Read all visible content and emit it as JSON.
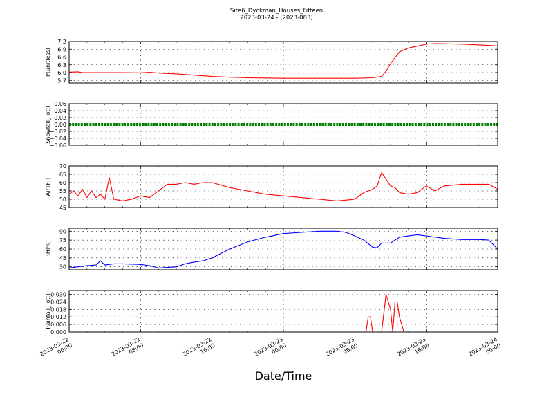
{
  "header": {
    "title": "Site6_Dyckman_Houses_Fifteen",
    "subtitle": "2023-03-24 - (2023-083)"
  },
  "x_axis": {
    "label": "Date/Time",
    "tick_labels": [
      [
        "2023-03-22",
        "00:00"
      ],
      [
        "2023-03-22",
        "08:00"
      ],
      [
        "2023-03-22",
        "16:00"
      ],
      [
        "2023-03-23",
        "00:00"
      ],
      [
        "2023-03-23",
        "08:00"
      ],
      [
        "2023-03-23",
        "16:00"
      ],
      [
        "2023-03-24",
        "00:00"
      ]
    ]
  },
  "chart_data": [
    {
      "type": "line",
      "ylabel": "P(unitless)",
      "ylim": [
        5.6,
        7.2
      ],
      "yticks": [
        5.7,
        6.0,
        6.3,
        6.6,
        6.9,
        7.2
      ],
      "ytick_labels": [
        "5.7",
        "6.0",
        "6.3",
        "6.6",
        "6.9",
        "7.2"
      ],
      "xlim": [
        "2023-03-22 00:00",
        "2023-03-24 00:00"
      ],
      "grid": true,
      "series": [
        {
          "color": "#ff0000",
          "x": [
            "2023-03-22 00:00",
            "2023-03-22 01:00",
            "2023-03-22 01:30",
            "2023-03-22 03:00",
            "2023-03-22 06:00",
            "2023-03-22 08:00",
            "2023-03-22 09:00",
            "2023-03-22 10:00",
            "2023-03-22 12:00",
            "2023-03-22 14:00",
            "2023-03-22 16:00",
            "2023-03-22 18:00",
            "2023-03-22 20:00",
            "2023-03-23 00:00",
            "2023-03-23 04:00",
            "2023-03-23 08:00",
            "2023-03-23 10:00",
            "2023-03-23 11:00",
            "2023-03-23 11:30",
            "2023-03-23 12:00",
            "2023-03-23 13:00",
            "2023-03-23 14:00",
            "2023-03-23 16:00",
            "2023-03-23 17:00",
            "2023-03-23 20:00",
            "2023-03-23 23:00",
            "2023-03-24 00:00"
          ],
          "y": [
            6.02,
            6.03,
            6.0,
            6.0,
            6.0,
            5.99,
            6.01,
            5.98,
            5.95,
            5.9,
            5.85,
            5.82,
            5.8,
            5.78,
            5.78,
            5.78,
            5.8,
            5.85,
            6.05,
            6.35,
            6.8,
            6.95,
            7.1,
            7.12,
            7.1,
            7.05,
            7.03
          ]
        }
      ]
    },
    {
      "type": "line",
      "ylabel": "Snowfall_Tot()",
      "ylim": [
        -0.06,
        0.06
      ],
      "yticks": [
        -0.06,
        -0.04,
        -0.02,
        0.0,
        0.02,
        0.04,
        0.06
      ],
      "ytick_labels": [
        "−0.06",
        "−0.04",
        "−0.02",
        "0.00",
        "0.02",
        "0.04",
        "0.06"
      ],
      "xlim": [
        "2023-03-22 00:00",
        "2023-03-24 00:00"
      ],
      "grid": true,
      "series": [
        {
          "color": "#008000",
          "x": [
            "2023-03-22 00:00",
            "2023-03-24 00:00"
          ],
          "y": [
            0.0,
            0.0
          ]
        }
      ]
    },
    {
      "type": "line",
      "ylabel": "AirTF()",
      "ylim": [
        45,
        70
      ],
      "yticks": [
        45,
        50,
        55,
        60,
        65,
        70
      ],
      "ytick_labels": [
        "45",
        "50",
        "55",
        "60",
        "65",
        "70"
      ],
      "xlim": [
        "2023-03-22 00:00",
        "2023-03-24 00:00"
      ],
      "grid": true,
      "series": [
        {
          "color": "#ff0000",
          "x": [
            "2023-03-22 00:00",
            "2023-03-22 00:30",
            "2023-03-22 01:00",
            "2023-03-22 01:30",
            "2023-03-22 02:00",
            "2023-03-22 02:30",
            "2023-03-22 03:00",
            "2023-03-22 03:30",
            "2023-03-22 04:00",
            "2023-03-22 04:30",
            "2023-03-22 05:00",
            "2023-03-22 06:00",
            "2023-03-22 07:00",
            "2023-03-22 08:00",
            "2023-03-22 09:00",
            "2023-03-22 10:00",
            "2023-03-22 11:00",
            "2023-03-22 12:00",
            "2023-03-22 13:00",
            "2023-03-22 14:00",
            "2023-03-22 15:00",
            "2023-03-22 16:00",
            "2023-03-22 18:00",
            "2023-03-22 20:00",
            "2023-03-22 22:00",
            "2023-03-23 00:00",
            "2023-03-23 02:00",
            "2023-03-23 04:00",
            "2023-03-23 06:00",
            "2023-03-23 08:00",
            "2023-03-23 09:00",
            "2023-03-23 10:00",
            "2023-03-23 10:30",
            "2023-03-23 11:00",
            "2023-03-23 12:00",
            "2023-03-23 12:30",
            "2023-03-23 13:00",
            "2023-03-23 14:00",
            "2023-03-23 15:00",
            "2023-03-23 16:00",
            "2023-03-23 17:00",
            "2023-03-23 18:00",
            "2023-03-23 20:00",
            "2023-03-23 22:00",
            "2023-03-23 23:00",
            "2023-03-24 00:00"
          ],
          "y": [
            53,
            55,
            52,
            56,
            51,
            55,
            51,
            53,
            50,
            63,
            50,
            49,
            50,
            52,
            51,
            55,
            59,
            59,
            60,
            59,
            60,
            60,
            57,
            55,
            53,
            52,
            51,
            50,
            49,
            50,
            54,
            56,
            58,
            66,
            58,
            57,
            54,
            53,
            54,
            58,
            55,
            58,
            59,
            59,
            59,
            56
          ]
        }
      ]
    },
    {
      "type": "line",
      "ylabel": "RH(%)",
      "ylim": [
        25,
        95
      ],
      "yticks": [
        30,
        45,
        60,
        75,
        90
      ],
      "ytick_labels": [
        "30",
        "45",
        "60",
        "75",
        "90"
      ],
      "xlim": [
        "2023-03-22 00:00",
        "2023-03-24 00:00"
      ],
      "grid": true,
      "series": [
        {
          "color": "#0000ff",
          "x": [
            "2023-03-22 00:00",
            "2023-03-22 01:00",
            "2023-03-22 02:00",
            "2023-03-22 03:00",
            "2023-03-22 03:30",
            "2023-03-22 04:00",
            "2023-03-22 05:00",
            "2023-03-22 06:00",
            "2023-03-22 08:00",
            "2023-03-22 09:00",
            "2023-03-22 10:00",
            "2023-03-22 12:00",
            "2023-03-22 13:00",
            "2023-03-22 14:00",
            "2023-03-22 15:00",
            "2023-03-22 16:00",
            "2023-03-22 18:00",
            "2023-03-22 20:00",
            "2023-03-22 22:00",
            "2023-03-23 00:00",
            "2023-03-23 02:00",
            "2023-03-23 04:00",
            "2023-03-23 06:00",
            "2023-03-23 07:00",
            "2023-03-23 08:00",
            "2023-03-23 09:00",
            "2023-03-23 10:00",
            "2023-03-23 10:30",
            "2023-03-23 11:00",
            "2023-03-23 12:00",
            "2023-03-23 13:00",
            "2023-03-23 14:00",
            "2023-03-23 15:00",
            "2023-03-23 16:00",
            "2023-03-23 18:00",
            "2023-03-23 20:00",
            "2023-03-23 22:00",
            "2023-03-23 23:00",
            "2023-03-24 00:00"
          ],
          "y": [
            28,
            30,
            32,
            33,
            40,
            33,
            35,
            35,
            34,
            32,
            28,
            30,
            35,
            38,
            40,
            45,
            60,
            72,
            80,
            86,
            88,
            90,
            90,
            88,
            82,
            75,
            63,
            62,
            70,
            70,
            80,
            82,
            84,
            82,
            78,
            76,
            76,
            75,
            60
          ]
        }
      ]
    },
    {
      "type": "line",
      "ylabel": "Rainfall_Tot()",
      "ylim": [
        0.0,
        0.033
      ],
      "yticks": [
        0.0,
        0.006,
        0.012,
        0.018,
        0.024,
        0.03
      ],
      "ytick_labels": [
        "0.000",
        "0.006",
        "0.012",
        "0.018",
        "0.024",
        "0.030"
      ],
      "xlim": [
        "2023-03-22 00:00",
        "2023-03-24 00:00"
      ],
      "grid": true,
      "series": [
        {
          "color": "#ff0000",
          "x": [
            "2023-03-22 00:00",
            "2023-03-23 09:15",
            "2023-03-23 09:30",
            "2023-03-23 09:45",
            "2023-03-23 10:00",
            "2023-03-23 11:00",
            "2023-03-23 11:30",
            "2023-03-23 12:00",
            "2023-03-23 12:15",
            "2023-03-23 12:30",
            "2023-03-23 12:45",
            "2023-03-23 13:00",
            "2023-03-23 13:30",
            "2023-03-24 00:00"
          ],
          "y": [
            0,
            0,
            0.012,
            0.012,
            0,
            0,
            0.03,
            0.018,
            0,
            0.024,
            0.024,
            0.012,
            0,
            0
          ]
        }
      ]
    }
  ]
}
